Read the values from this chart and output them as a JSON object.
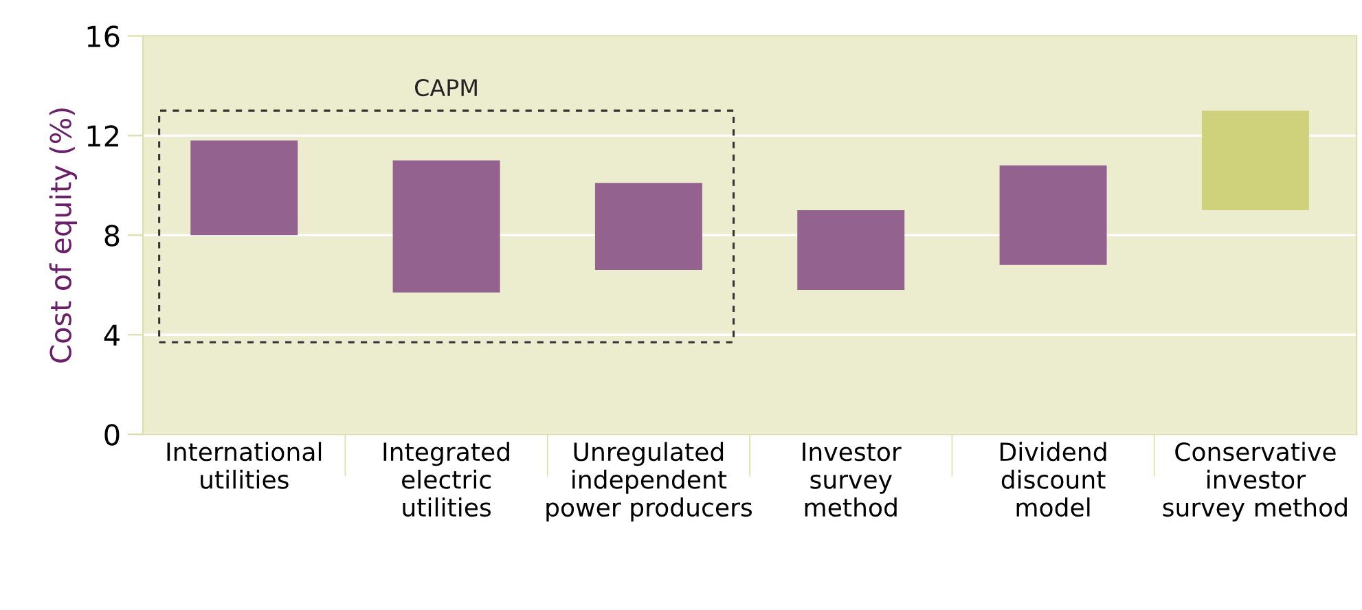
{
  "chart_data": {
    "type": "bar",
    "ylabel": "Cost of equity (%)",
    "categories": [
      "International\nutilities",
      "Integrated\nelectric\nutilities",
      "Unregulated\nindependent\npower producers",
      "Investor\nsurvey\nmethod",
      "Dividend\ndiscount\nmodel",
      "Conservative\ninvestor\nsurvey method"
    ],
    "base": [
      8.0,
      5.7,
      6.6,
      5.8,
      6.8,
      9.0
    ],
    "values": [
      3.8,
      5.3,
      3.5,
      3.2,
      4.0,
      4.0
    ],
    "colors": [
      "#93628f",
      "#93628f",
      "#93628f",
      "#93628f",
      "#93628f",
      "#cfd27a"
    ],
    "ylim": [
      0,
      16
    ],
    "yticks": [
      0,
      4,
      8,
      12,
      16
    ],
    "grid": "y",
    "annotations": [
      "CAPM"
    ]
  }
}
